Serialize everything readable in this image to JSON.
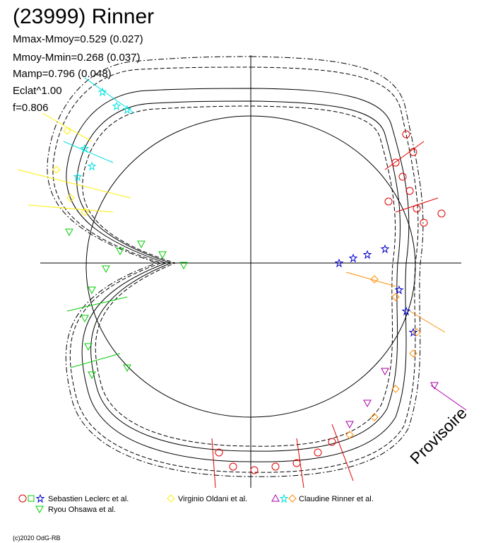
{
  "title": "(23999) Rinner",
  "stats": [
    "Mmax-Mmoy=0.529 (0.027)",
    "Mmoy-Mmin=0.268 (0.037)",
    "Mamp=0.796 (0.048)",
    "Eclat^1.00",
    "f=0.806"
  ],
  "legend": [
    "Sebastien Leclerc et al.",
    "Virginio Oldani et al.",
    "Claudine Rinner et al.",
    "Ryou Ohsawa et al."
  ],
  "watermark": "Provisoire",
  "footer": "(c)2020 OdG-RB"
}
